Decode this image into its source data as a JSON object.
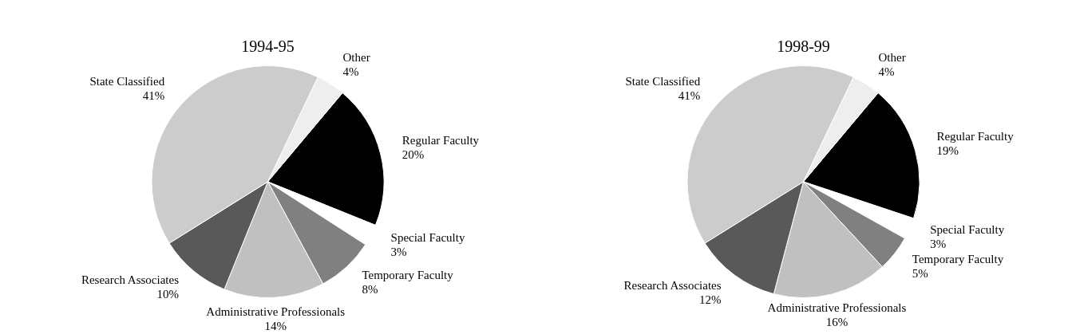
{
  "chart_data": [
    {
      "type": "pie",
      "title": "1994-95",
      "categories": [
        "Regular Faculty",
        "Special Faculty",
        "Temporary Faculty",
        "Administrative Professionals",
        "Research Associates",
        "State Classified",
        "Other"
      ],
      "values": [
        20,
        3,
        8,
        14,
        10,
        41,
        4
      ],
      "colors": [
        "#000000",
        "#ffffff",
        "#808080",
        "#c0c0c0",
        "#595959",
        "#cccccc",
        "#eeeeee"
      ],
      "value_labels": [
        "20%",
        "3%",
        "8%",
        "14%",
        "10%",
        "41%",
        "4%"
      ]
    },
    {
      "type": "pie",
      "title": "1998-99",
      "categories": [
        "Regular Faculty",
        "Special Faculty",
        "Temporary Faculty",
        "Administrative Professionals",
        "Research Associates",
        "State Classified",
        "Other"
      ],
      "values": [
        19,
        3,
        5,
        16,
        12,
        41,
        4
      ],
      "colors": [
        "#000000",
        "#ffffff",
        "#808080",
        "#c0c0c0",
        "#595959",
        "#cccccc",
        "#eeeeee"
      ],
      "value_labels": [
        "19%",
        "3%",
        "5%",
        "16%",
        "12%",
        "41%",
        "4%"
      ]
    }
  ]
}
